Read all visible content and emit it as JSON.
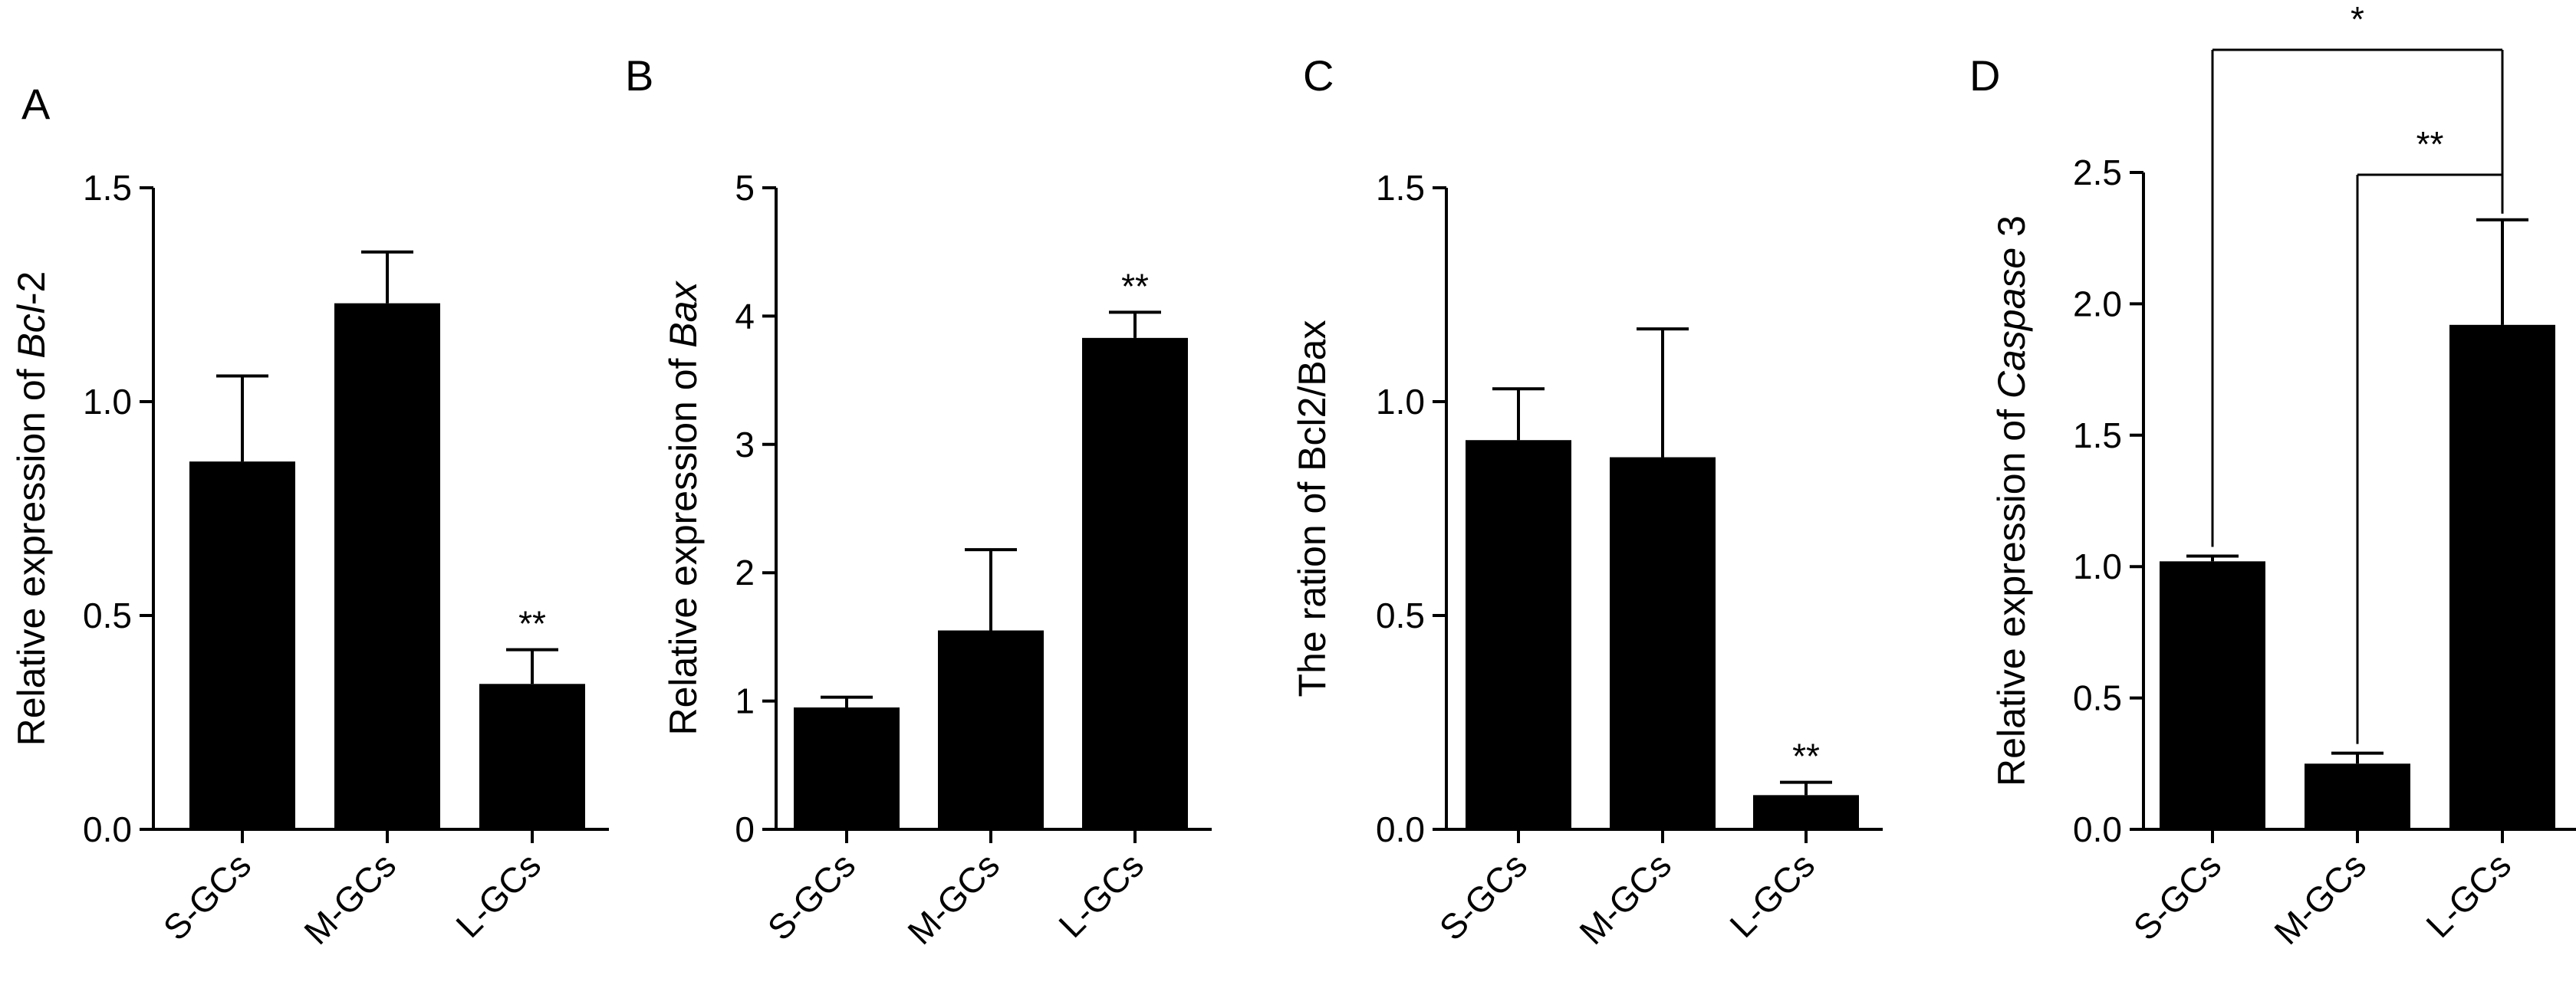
{
  "chart_data": [
    {
      "type": "bar",
      "panel": "A",
      "categories": [
        "S-GCs",
        "M-GCs",
        "L-GCs"
      ],
      "values": [
        0.86,
        1.23,
        0.34
      ],
      "errors": [
        0.2,
        0.12,
        0.08
      ],
      "annotations": [
        "",
        "",
        "**"
      ],
      "ylabel_parts": [
        {
          "text": "Relative expression of "
        },
        {
          "text": "Bcl",
          "italic": true
        },
        {
          "text": "-2"
        }
      ],
      "ylim": [
        0,
        1.5
      ],
      "yticks": [
        "0.0",
        "0.5",
        "1.0",
        "1.5"
      ],
      "bar_color": "#000000"
    },
    {
      "type": "bar",
      "panel": "B",
      "categories": [
        "S-GCs",
        "M-GCs",
        "L-GCs"
      ],
      "values": [
        0.95,
        1.55,
        3.83
      ],
      "errors": [
        0.08,
        0.63,
        0.2
      ],
      "annotations": [
        "",
        "",
        "**"
      ],
      "ylabel_parts": [
        {
          "text": "Relative expression of "
        },
        {
          "text": "Bax",
          "italic": true
        }
      ],
      "ylim": [
        0,
        5
      ],
      "yticks": [
        "0",
        "1",
        "2",
        "3",
        "4",
        "5"
      ],
      "bar_color": "#000000"
    },
    {
      "type": "bar",
      "panel": "C",
      "categories": [
        "S-GCs",
        "M-GCs",
        "L-GCs"
      ],
      "values": [
        0.91,
        0.87,
        0.08
      ],
      "errors": [
        0.12,
        0.3,
        0.03
      ],
      "annotations": [
        "",
        "",
        "**"
      ],
      "ylabel_parts": [
        {
          "text": "The ration of Bcl2/Bax"
        }
      ],
      "ylim": [
        0,
        1.5
      ],
      "yticks": [
        "0.0",
        "0.5",
        "1.0",
        "1.5"
      ],
      "bar_color": "#000000"
    },
    {
      "type": "bar",
      "panel": "D",
      "categories": [
        "S-GCs",
        "M-GCs",
        "L-GCs"
      ],
      "values": [
        1.02,
        0.25,
        1.92
      ],
      "errors": [
        0.02,
        0.04,
        0.4
      ],
      "annotations": [
        "",
        "",
        ""
      ],
      "comparisons": [
        {
          "from": 0,
          "to": 2,
          "label": "*"
        },
        {
          "from": 1,
          "to": 2,
          "label": "**"
        }
      ],
      "ylabel_parts": [
        {
          "text": "Relative expression of "
        },
        {
          "text": "Caspase",
          "italic": true
        },
        {
          "text": " 3"
        }
      ],
      "ylim": [
        0,
        2.5
      ],
      "yticks": [
        "0.0",
        "0.5",
        "1.0",
        "1.5",
        "2.0",
        "2.5"
      ],
      "bar_color": "#000000"
    }
  ]
}
